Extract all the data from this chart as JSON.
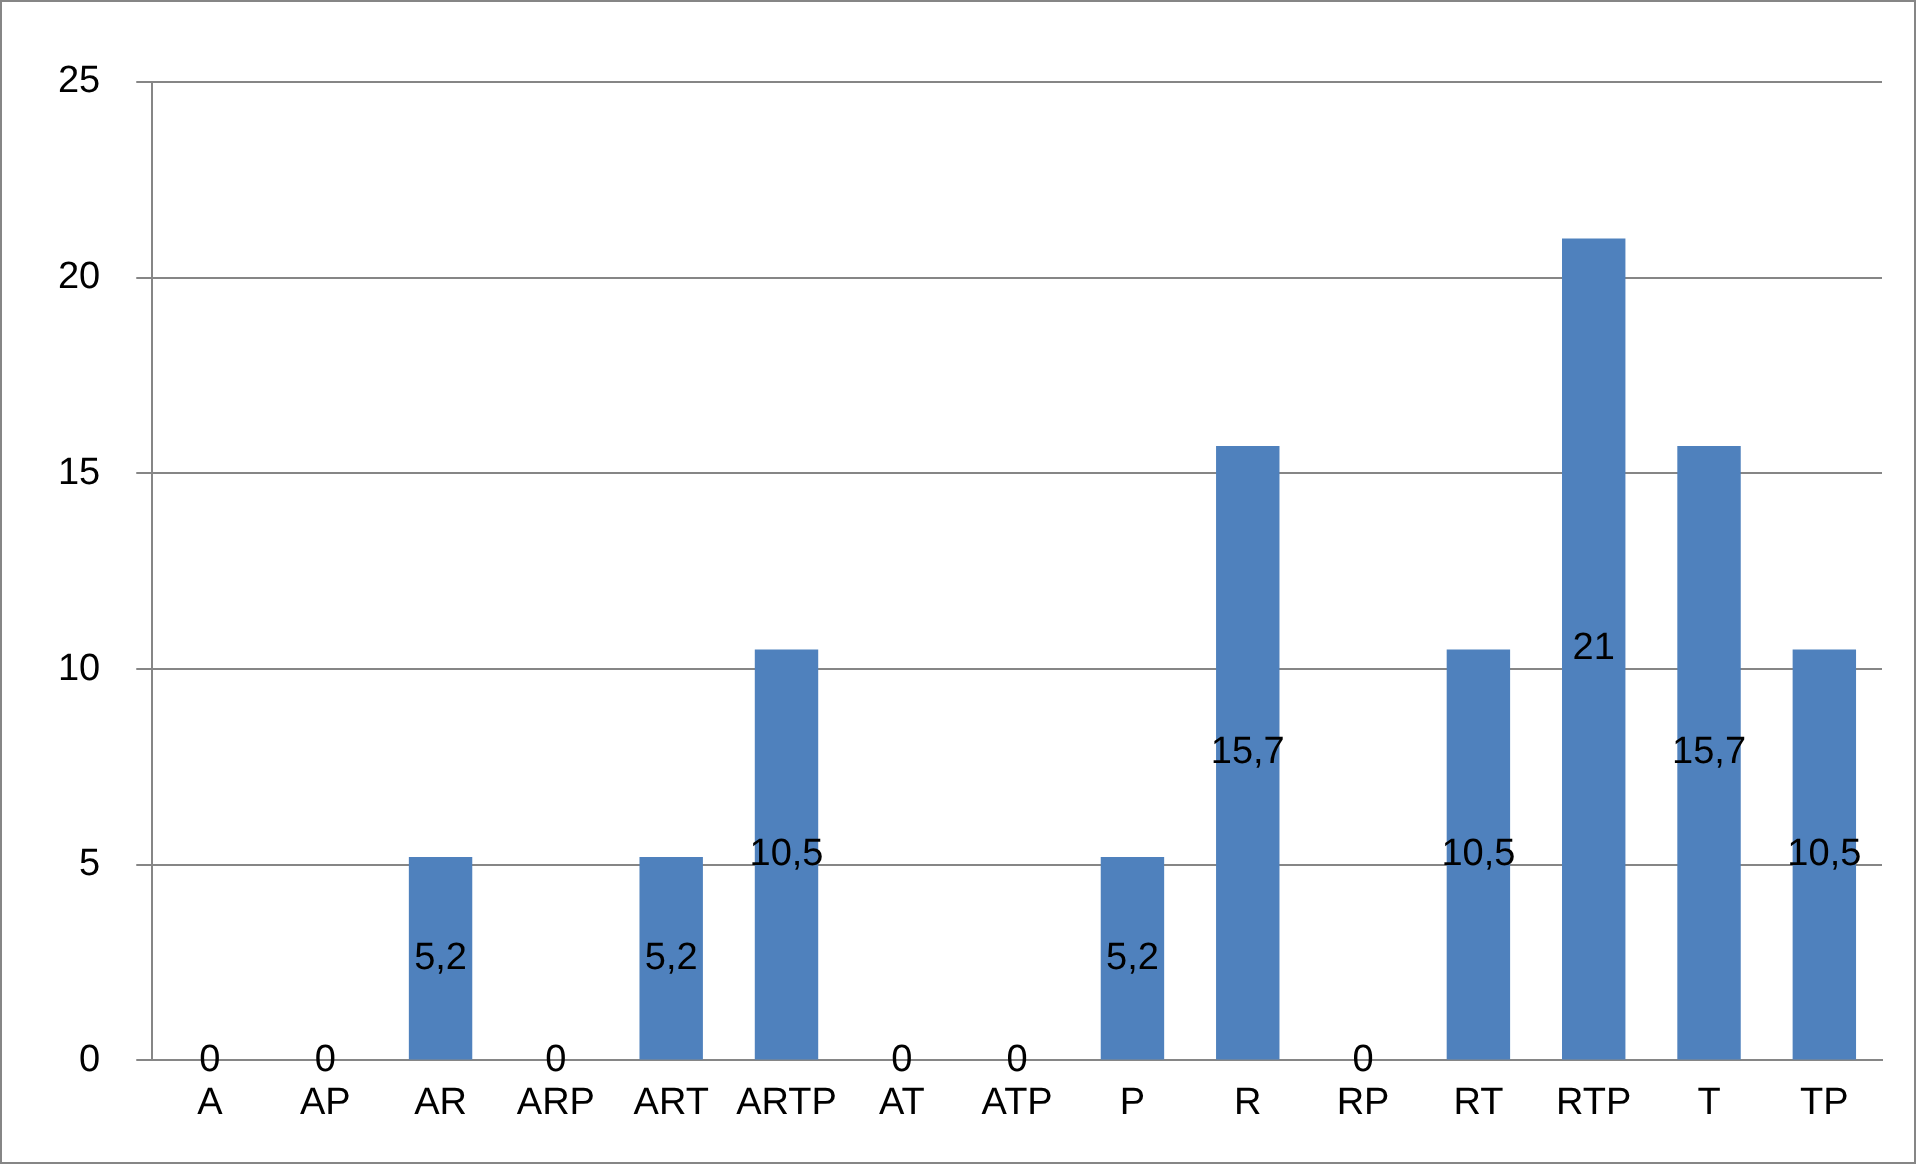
{
  "chart_data": {
    "type": "bar",
    "categories": [
      "A",
      "AP",
      "AR",
      "ARP",
      "ART",
      "ARTP",
      "AT",
      "ATP",
      "P",
      "R",
      "RP",
      "RT",
      "RTP",
      "T",
      "TP"
    ],
    "values": [
      0,
      0,
      5.2,
      0,
      5.2,
      10.5,
      0,
      0,
      5.2,
      15.7,
      0,
      10.5,
      21,
      15.7,
      10.5
    ],
    "value_labels": [
      "0",
      "0",
      "5,2",
      "0",
      "5,2",
      "10,5",
      "0",
      "0",
      "5,2",
      "15,7",
      "0",
      "10,5",
      "21",
      "15,7",
      "10,5"
    ],
    "color": "#4f81bd",
    "ylim": [
      0,
      25
    ],
    "yticks": [
      0,
      5,
      10,
      15,
      20,
      25
    ],
    "grid": "y",
    "legend": false
  }
}
